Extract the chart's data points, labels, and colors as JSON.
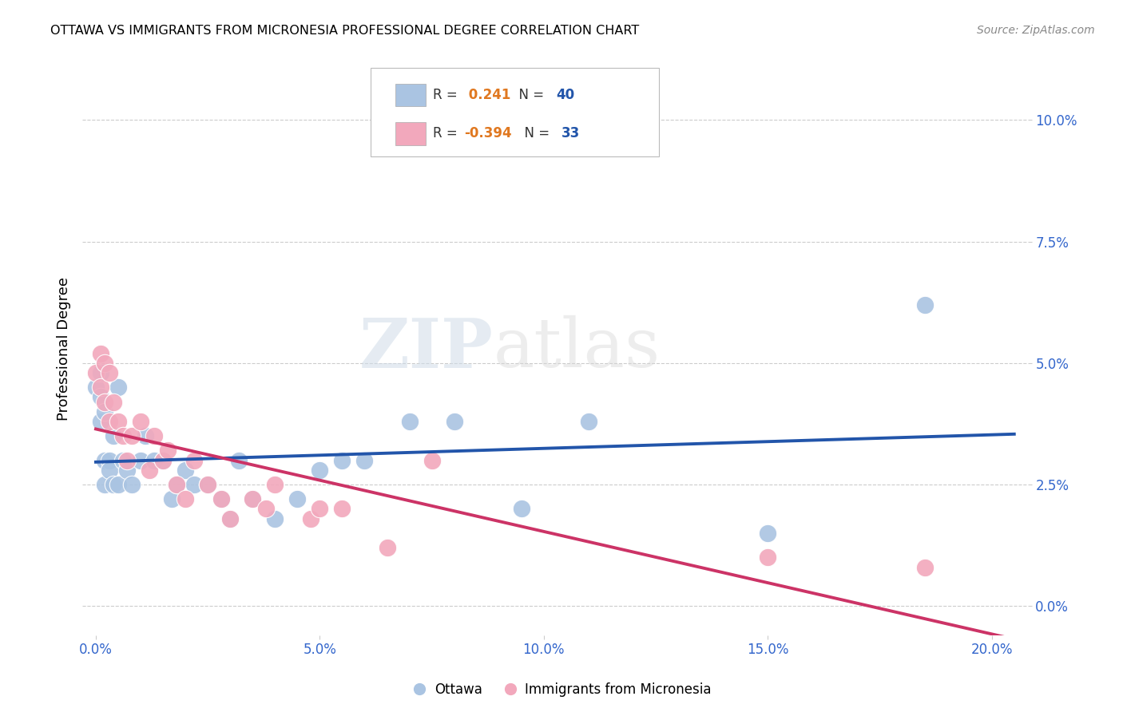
{
  "title": "OTTAWA VS IMMIGRANTS FROM MICRONESIA PROFESSIONAL DEGREE CORRELATION CHART",
  "source": "Source: ZipAtlas.com",
  "ylabel": "Professional Degree",
  "xlabel_ticks": [
    "0.0%",
    "5.0%",
    "10.0%",
    "15.0%",
    "20.0%"
  ],
  "xlabel_vals": [
    0.0,
    0.05,
    0.1,
    0.15,
    0.2
  ],
  "ylabel_ticks": [
    "0.0%",
    "2.5%",
    "5.0%",
    "7.5%",
    "10.0%"
  ],
  "ylabel_vals": [
    0.0,
    0.025,
    0.05,
    0.075,
    0.1
  ],
  "xlim": [
    -0.003,
    0.208
  ],
  "ylim": [
    -0.006,
    0.112
  ],
  "ottawa_R": 0.241,
  "ottawa_N": 40,
  "micronesia_R": -0.394,
  "micronesia_N": 33,
  "ottawa_color": "#aac4e2",
  "micronesia_color": "#f2a8bc",
  "trendline_blue": "#2255aa",
  "trendline_pink": "#cc3366",
  "tick_color": "#3366cc",
  "grid_color": "#cccccc",
  "legend_label1": "Ottawa",
  "legend_label2": "Immigrants from Micronesia",
  "ottawa_x": [
    0.0,
    0.001,
    0.001,
    0.001,
    0.002,
    0.002,
    0.002,
    0.003,
    0.003,
    0.004,
    0.004,
    0.005,
    0.005,
    0.006,
    0.007,
    0.008,
    0.01,
    0.011,
    0.013,
    0.015,
    0.017,
    0.018,
    0.02,
    0.022,
    0.025,
    0.028,
    0.03,
    0.032,
    0.035,
    0.04,
    0.045,
    0.05,
    0.055,
    0.06,
    0.07,
    0.08,
    0.095,
    0.11,
    0.15,
    0.185
  ],
  "ottawa_y": [
    0.045,
    0.048,
    0.038,
    0.043,
    0.04,
    0.03,
    0.025,
    0.03,
    0.028,
    0.035,
    0.025,
    0.045,
    0.025,
    0.03,
    0.028,
    0.025,
    0.03,
    0.035,
    0.03,
    0.03,
    0.022,
    0.025,
    0.028,
    0.025,
    0.025,
    0.022,
    0.018,
    0.03,
    0.022,
    0.018,
    0.022,
    0.028,
    0.03,
    0.03,
    0.038,
    0.038,
    0.02,
    0.038,
    0.015,
    0.062
  ],
  "micronesia_x": [
    0.0,
    0.001,
    0.001,
    0.002,
    0.002,
    0.003,
    0.003,
    0.004,
    0.005,
    0.006,
    0.007,
    0.008,
    0.01,
    0.012,
    0.013,
    0.015,
    0.016,
    0.018,
    0.02,
    0.022,
    0.025,
    0.028,
    0.03,
    0.035,
    0.038,
    0.04,
    0.048,
    0.05,
    0.055,
    0.065,
    0.075,
    0.15,
    0.185
  ],
  "micronesia_y": [
    0.048,
    0.052,
    0.045,
    0.05,
    0.042,
    0.048,
    0.038,
    0.042,
    0.038,
    0.035,
    0.03,
    0.035,
    0.038,
    0.028,
    0.035,
    0.03,
    0.032,
    0.025,
    0.022,
    0.03,
    0.025,
    0.022,
    0.018,
    0.022,
    0.02,
    0.025,
    0.018,
    0.02,
    0.02,
    0.012,
    0.03,
    0.01,
    0.008
  ]
}
